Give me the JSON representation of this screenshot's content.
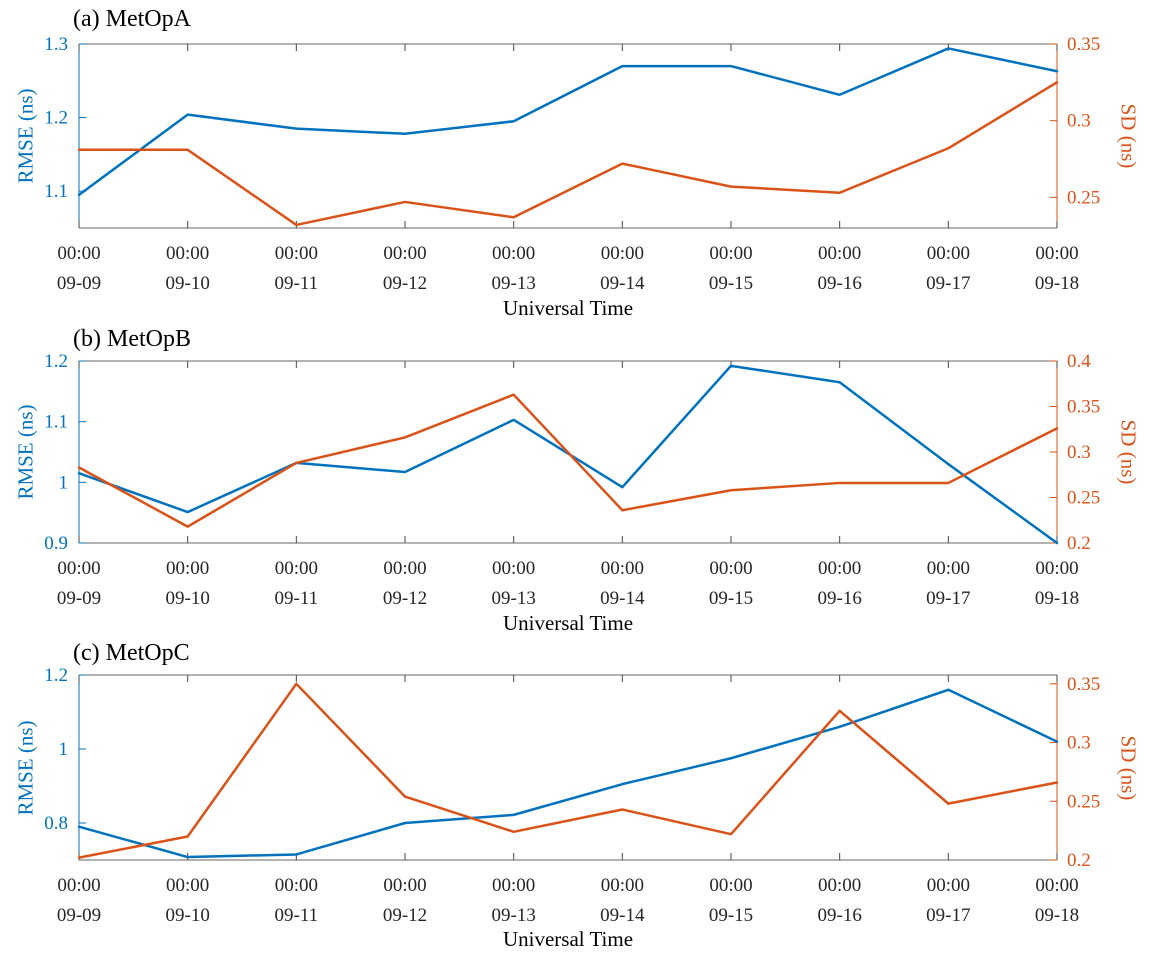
{
  "figure": {
    "xlabel": "Universal Time",
    "x_time_label": "00:00"
  },
  "colors": {
    "rmse_blue": "#0072BD",
    "sd_orange": "#D95319",
    "axis_gray": "#666666",
    "tick_label_gray": "#262626"
  },
  "chart_data": [
    {
      "type": "line",
      "title": "(a) MetOpA",
      "xlabel": "Universal Time",
      "ylabel_left": "RMSE (ns)",
      "ylabel_right": "SD (ns)",
      "x_tick_time": "00:00",
      "categories": [
        "09-09",
        "09-10",
        "09-11",
        "09-12",
        "09-13",
        "09-14",
        "09-15",
        "09-16",
        "09-17",
        "09-18"
      ],
      "axes": {
        "left": {
          "label": "RMSE (ns)",
          "color": "#0072BD",
          "lim": [
            1.05,
            1.3
          ],
          "ticks": [
            {
              "v": 1.1,
              "t": "1.1"
            },
            {
              "v": 1.2,
              "t": "1.2"
            },
            {
              "v": 1.3,
              "t": "1.3"
            }
          ]
        },
        "right": {
          "label": "SD (ns)",
          "color": "#D95319",
          "lim": [
            0.23,
            0.35
          ],
          "ticks": [
            {
              "v": 0.25,
              "t": "0.25"
            },
            {
              "v": 0.3,
              "t": "0.3"
            },
            {
              "v": 0.35,
              "t": "0.35"
            }
          ]
        }
      },
      "series": [
        {
          "name": "RMSE",
          "axis": "left",
          "color": "#0072BD",
          "values": [
            1.095,
            1.204,
            1.185,
            1.178,
            1.195,
            1.27,
            1.27,
            1.231,
            1.294,
            1.263
          ]
        },
        {
          "name": "SD",
          "axis": "right",
          "color": "#D95319",
          "values": [
            0.281,
            0.281,
            0.232,
            0.247,
            0.237,
            0.272,
            0.257,
            0.253,
            0.282,
            0.325
          ]
        }
      ]
    },
    {
      "type": "line",
      "title": "(b) MetOpB",
      "xlabel": "Universal Time",
      "ylabel_left": "RMSE (ns)",
      "ylabel_right": "SD (ns)",
      "x_tick_time": "00:00",
      "categories": [
        "09-09",
        "09-10",
        "09-11",
        "09-12",
        "09-13",
        "09-14",
        "09-15",
        "09-16",
        "09-17",
        "09-18"
      ],
      "axes": {
        "left": {
          "label": "RMSE (ns)",
          "color": "#0072BD",
          "lim": [
            0.9,
            1.2
          ],
          "ticks": [
            {
              "v": 0.9,
              "t": "0.9"
            },
            {
              "v": 1,
              "t": "1"
            },
            {
              "v": 1.1,
              "t": "1.1"
            },
            {
              "v": 1.2,
              "t": "1.2"
            }
          ]
        },
        "right": {
          "label": "SD (ns)",
          "color": "#D95319",
          "lim": [
            0.2,
            0.4
          ],
          "ticks": [
            {
              "v": 0.2,
              "t": "0.2"
            },
            {
              "v": 0.25,
              "t": "0.25"
            },
            {
              "v": 0.3,
              "t": "0.3"
            },
            {
              "v": 0.35,
              "t": "0.35"
            },
            {
              "v": 0.4,
              "t": "0.4"
            }
          ]
        }
      },
      "series": [
        {
          "name": "RMSE",
          "axis": "left",
          "color": "#0072BD",
          "values": [
            1.015,
            0.951,
            1.032,
            1.017,
            1.103,
            0.992,
            1.192,
            1.165,
            1.03,
            0.9
          ]
        },
        {
          "name": "SD",
          "axis": "right",
          "color": "#D95319",
          "values": [
            0.283,
            0.218,
            0.288,
            0.316,
            0.363,
            0.236,
            0.258,
            0.266,
            0.266,
            0.326
          ]
        }
      ]
    },
    {
      "type": "line",
      "title": "(c) MetOpC",
      "xlabel": "Universal Time",
      "ylabel_left": "RMSE (ns)",
      "ylabel_right": "SD (ns)",
      "x_tick_time": "00:00",
      "categories": [
        "09-09",
        "09-10",
        "09-11",
        "09-12",
        "09-13",
        "09-14",
        "09-15",
        "09-16",
        "09-17",
        "09-18"
      ],
      "axes": {
        "left": {
          "label": "RMSE (ns)",
          "color": "#0072BD",
          "lim": [
            0.7,
            1.2
          ],
          "ticks": [
            {
              "v": 0.8,
              "t": "0.8"
            },
            {
              "v": 1,
              "t": "1"
            },
            {
              "v": 1.2,
              "t": "1.2"
            }
          ]
        },
        "right": {
          "label": "SD (ns)",
          "color": "#D95319",
          "lim": [
            0.2,
            0.3575
          ],
          "ticks": [
            {
              "v": 0.2,
              "t": "0.2"
            },
            {
              "v": 0.25,
              "t": "0.25"
            },
            {
              "v": 0.3,
              "t": "0.3"
            },
            {
              "v": 0.35,
              "t": "0.35"
            }
          ]
        }
      },
      "series": [
        {
          "name": "RMSE",
          "axis": "left",
          "color": "#0072BD",
          "values": [
            0.79,
            0.708,
            0.715,
            0.8,
            0.822,
            0.905,
            0.975,
            1.06,
            1.16,
            1.02
          ]
        },
        {
          "name": "SD",
          "axis": "right",
          "color": "#D95319",
          "values": [
            0.202,
            0.22,
            0.35,
            0.254,
            0.224,
            0.243,
            0.222,
            0.327,
            0.248,
            0.266
          ]
        }
      ]
    }
  ]
}
